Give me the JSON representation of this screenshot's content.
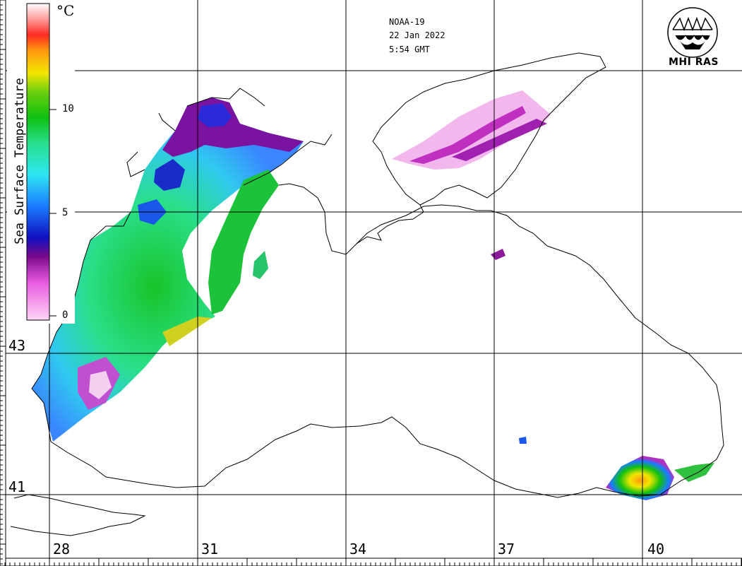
{
  "satellite": "NOAA-19",
  "date": "22 Jan 2022",
  "time": "5:54 GMT",
  "organization": "MHI RAS",
  "scale": {
    "title": "Sea Surface Temperature",
    "unit": "°C",
    "ticks": [
      {
        "label": "10",
        "value": 10
      },
      {
        "label": "5",
        "value": 5
      },
      {
        "label": "0",
        "value": 0
      }
    ],
    "range": [
      0,
      15
    ],
    "colors": [
      "#ffd6f6",
      "#e85ae0",
      "#7a0a8a",
      "#1010c0",
      "#1a7cff",
      "#2ee6f2",
      "#26e08a",
      "#10c010",
      "#6ad010",
      "#f2e600",
      "#ff9a10",
      "#ff2a20",
      "#ff9a9a",
      "#ffffff"
    ]
  },
  "longitudes": [
    {
      "label": "28",
      "value": 28
    },
    {
      "label": "31",
      "value": 31
    },
    {
      "label": "34",
      "value": 34
    },
    {
      "label": "37",
      "value": 37
    },
    {
      "label": "40",
      "value": 40
    }
  ],
  "latitudes": [
    {
      "label": "43",
      "value": 43
    },
    {
      "label": "41",
      "value": 41
    }
  ]
}
